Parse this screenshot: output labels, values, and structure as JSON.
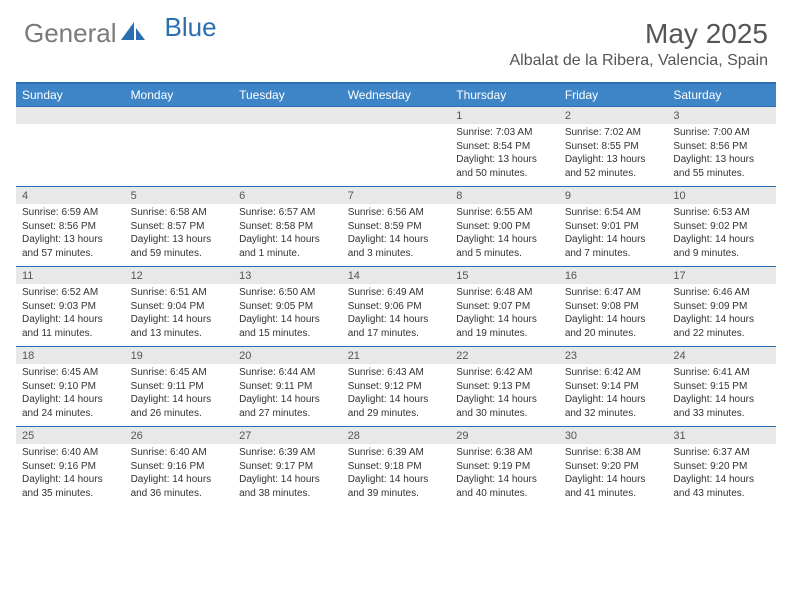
{
  "logo": {
    "text1": "General",
    "text2": "Blue",
    "gray": "#7a7a7a",
    "blue": "#2b6fb0"
  },
  "title": "May 2025",
  "location": "Albalat de la Ribera, Valencia, Spain",
  "header_bg": "#3d85c6",
  "header_border": "#2b6fb0",
  "daynum_bg": "#e8e8e8",
  "text_color": "#333333",
  "day_names": [
    "Sunday",
    "Monday",
    "Tuesday",
    "Wednesday",
    "Thursday",
    "Friday",
    "Saturday"
  ],
  "weeks": [
    [
      {
        "n": "",
        "lines": [
          "",
          "",
          ""
        ]
      },
      {
        "n": "",
        "lines": [
          "",
          "",
          ""
        ]
      },
      {
        "n": "",
        "lines": [
          "",
          "",
          ""
        ]
      },
      {
        "n": "",
        "lines": [
          "",
          "",
          ""
        ]
      },
      {
        "n": "1",
        "lines": [
          "Sunrise: 7:03 AM",
          "Sunset: 8:54 PM",
          "Daylight: 13 hours and 50 minutes."
        ]
      },
      {
        "n": "2",
        "lines": [
          "Sunrise: 7:02 AM",
          "Sunset: 8:55 PM",
          "Daylight: 13 hours and 52 minutes."
        ]
      },
      {
        "n": "3",
        "lines": [
          "Sunrise: 7:00 AM",
          "Sunset: 8:56 PM",
          "Daylight: 13 hours and 55 minutes."
        ]
      }
    ],
    [
      {
        "n": "4",
        "lines": [
          "Sunrise: 6:59 AM",
          "Sunset: 8:56 PM",
          "Daylight: 13 hours and 57 minutes."
        ]
      },
      {
        "n": "5",
        "lines": [
          "Sunrise: 6:58 AM",
          "Sunset: 8:57 PM",
          "Daylight: 13 hours and 59 minutes."
        ]
      },
      {
        "n": "6",
        "lines": [
          "Sunrise: 6:57 AM",
          "Sunset: 8:58 PM",
          "Daylight: 14 hours and 1 minute."
        ]
      },
      {
        "n": "7",
        "lines": [
          "Sunrise: 6:56 AM",
          "Sunset: 8:59 PM",
          "Daylight: 14 hours and 3 minutes."
        ]
      },
      {
        "n": "8",
        "lines": [
          "Sunrise: 6:55 AM",
          "Sunset: 9:00 PM",
          "Daylight: 14 hours and 5 minutes."
        ]
      },
      {
        "n": "9",
        "lines": [
          "Sunrise: 6:54 AM",
          "Sunset: 9:01 PM",
          "Daylight: 14 hours and 7 minutes."
        ]
      },
      {
        "n": "10",
        "lines": [
          "Sunrise: 6:53 AM",
          "Sunset: 9:02 PM",
          "Daylight: 14 hours and 9 minutes."
        ]
      }
    ],
    [
      {
        "n": "11",
        "lines": [
          "Sunrise: 6:52 AM",
          "Sunset: 9:03 PM",
          "Daylight: 14 hours and 11 minutes."
        ]
      },
      {
        "n": "12",
        "lines": [
          "Sunrise: 6:51 AM",
          "Sunset: 9:04 PM",
          "Daylight: 14 hours and 13 minutes."
        ]
      },
      {
        "n": "13",
        "lines": [
          "Sunrise: 6:50 AM",
          "Sunset: 9:05 PM",
          "Daylight: 14 hours and 15 minutes."
        ]
      },
      {
        "n": "14",
        "lines": [
          "Sunrise: 6:49 AM",
          "Sunset: 9:06 PM",
          "Daylight: 14 hours and 17 minutes."
        ]
      },
      {
        "n": "15",
        "lines": [
          "Sunrise: 6:48 AM",
          "Sunset: 9:07 PM",
          "Daylight: 14 hours and 19 minutes."
        ]
      },
      {
        "n": "16",
        "lines": [
          "Sunrise: 6:47 AM",
          "Sunset: 9:08 PM",
          "Daylight: 14 hours and 20 minutes."
        ]
      },
      {
        "n": "17",
        "lines": [
          "Sunrise: 6:46 AM",
          "Sunset: 9:09 PM",
          "Daylight: 14 hours and 22 minutes."
        ]
      }
    ],
    [
      {
        "n": "18",
        "lines": [
          "Sunrise: 6:45 AM",
          "Sunset: 9:10 PM",
          "Daylight: 14 hours and 24 minutes."
        ]
      },
      {
        "n": "19",
        "lines": [
          "Sunrise: 6:45 AM",
          "Sunset: 9:11 PM",
          "Daylight: 14 hours and 26 minutes."
        ]
      },
      {
        "n": "20",
        "lines": [
          "Sunrise: 6:44 AM",
          "Sunset: 9:11 PM",
          "Daylight: 14 hours and 27 minutes."
        ]
      },
      {
        "n": "21",
        "lines": [
          "Sunrise: 6:43 AM",
          "Sunset: 9:12 PM",
          "Daylight: 14 hours and 29 minutes."
        ]
      },
      {
        "n": "22",
        "lines": [
          "Sunrise: 6:42 AM",
          "Sunset: 9:13 PM",
          "Daylight: 14 hours and 30 minutes."
        ]
      },
      {
        "n": "23",
        "lines": [
          "Sunrise: 6:42 AM",
          "Sunset: 9:14 PM",
          "Daylight: 14 hours and 32 minutes."
        ]
      },
      {
        "n": "24",
        "lines": [
          "Sunrise: 6:41 AM",
          "Sunset: 9:15 PM",
          "Daylight: 14 hours and 33 minutes."
        ]
      }
    ],
    [
      {
        "n": "25",
        "lines": [
          "Sunrise: 6:40 AM",
          "Sunset: 9:16 PM",
          "Daylight: 14 hours and 35 minutes."
        ]
      },
      {
        "n": "26",
        "lines": [
          "Sunrise: 6:40 AM",
          "Sunset: 9:16 PM",
          "Daylight: 14 hours and 36 minutes."
        ]
      },
      {
        "n": "27",
        "lines": [
          "Sunrise: 6:39 AM",
          "Sunset: 9:17 PM",
          "Daylight: 14 hours and 38 minutes."
        ]
      },
      {
        "n": "28",
        "lines": [
          "Sunrise: 6:39 AM",
          "Sunset: 9:18 PM",
          "Daylight: 14 hours and 39 minutes."
        ]
      },
      {
        "n": "29",
        "lines": [
          "Sunrise: 6:38 AM",
          "Sunset: 9:19 PM",
          "Daylight: 14 hours and 40 minutes."
        ]
      },
      {
        "n": "30",
        "lines": [
          "Sunrise: 6:38 AM",
          "Sunset: 9:20 PM",
          "Daylight: 14 hours and 41 minutes."
        ]
      },
      {
        "n": "31",
        "lines": [
          "Sunrise: 6:37 AM",
          "Sunset: 9:20 PM",
          "Daylight: 14 hours and 43 minutes."
        ]
      }
    ]
  ]
}
